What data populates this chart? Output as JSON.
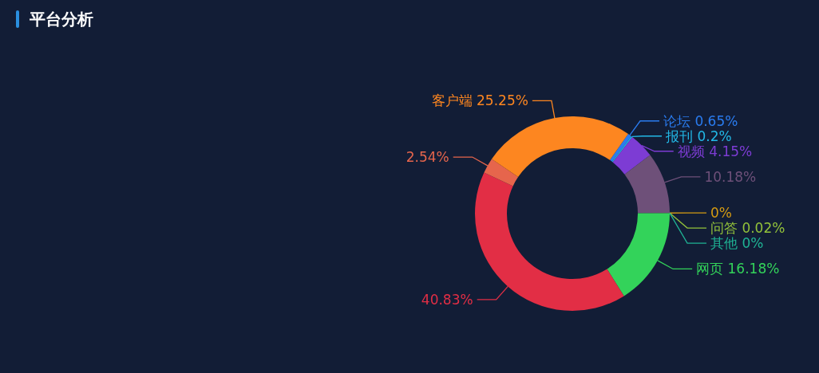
{
  "chart_data": {
    "type": "donut",
    "title": "平台分析",
    "categories": [
      "论坛",
      "报刊",
      "视频",
      null,
      null,
      "问答",
      "其他",
      "网页",
      null,
      null,
      "客户端"
    ],
    "values": [
      0.65,
      0.2,
      4.15,
      10.18,
      0,
      0.02,
      0,
      16.18,
      40.83,
      2.54,
      25.25
    ],
    "value_labels": [
      "0.65%",
      "0.2%",
      "4.15%",
      "10.18%",
      "0%",
      "0.02%",
      "0%",
      "16.18%",
      "40.83%",
      "2.54%",
      "25.25%"
    ],
    "colors": [
      "#2a7cf0",
      "#22b8e6",
      "#7d3cd4",
      "#6e5079",
      "#d49a12",
      "#93c23a",
      "#1fb394",
      "#33d35a",
      "#e22e45",
      "#e6654c",
      "#fd8620"
    ]
  }
}
